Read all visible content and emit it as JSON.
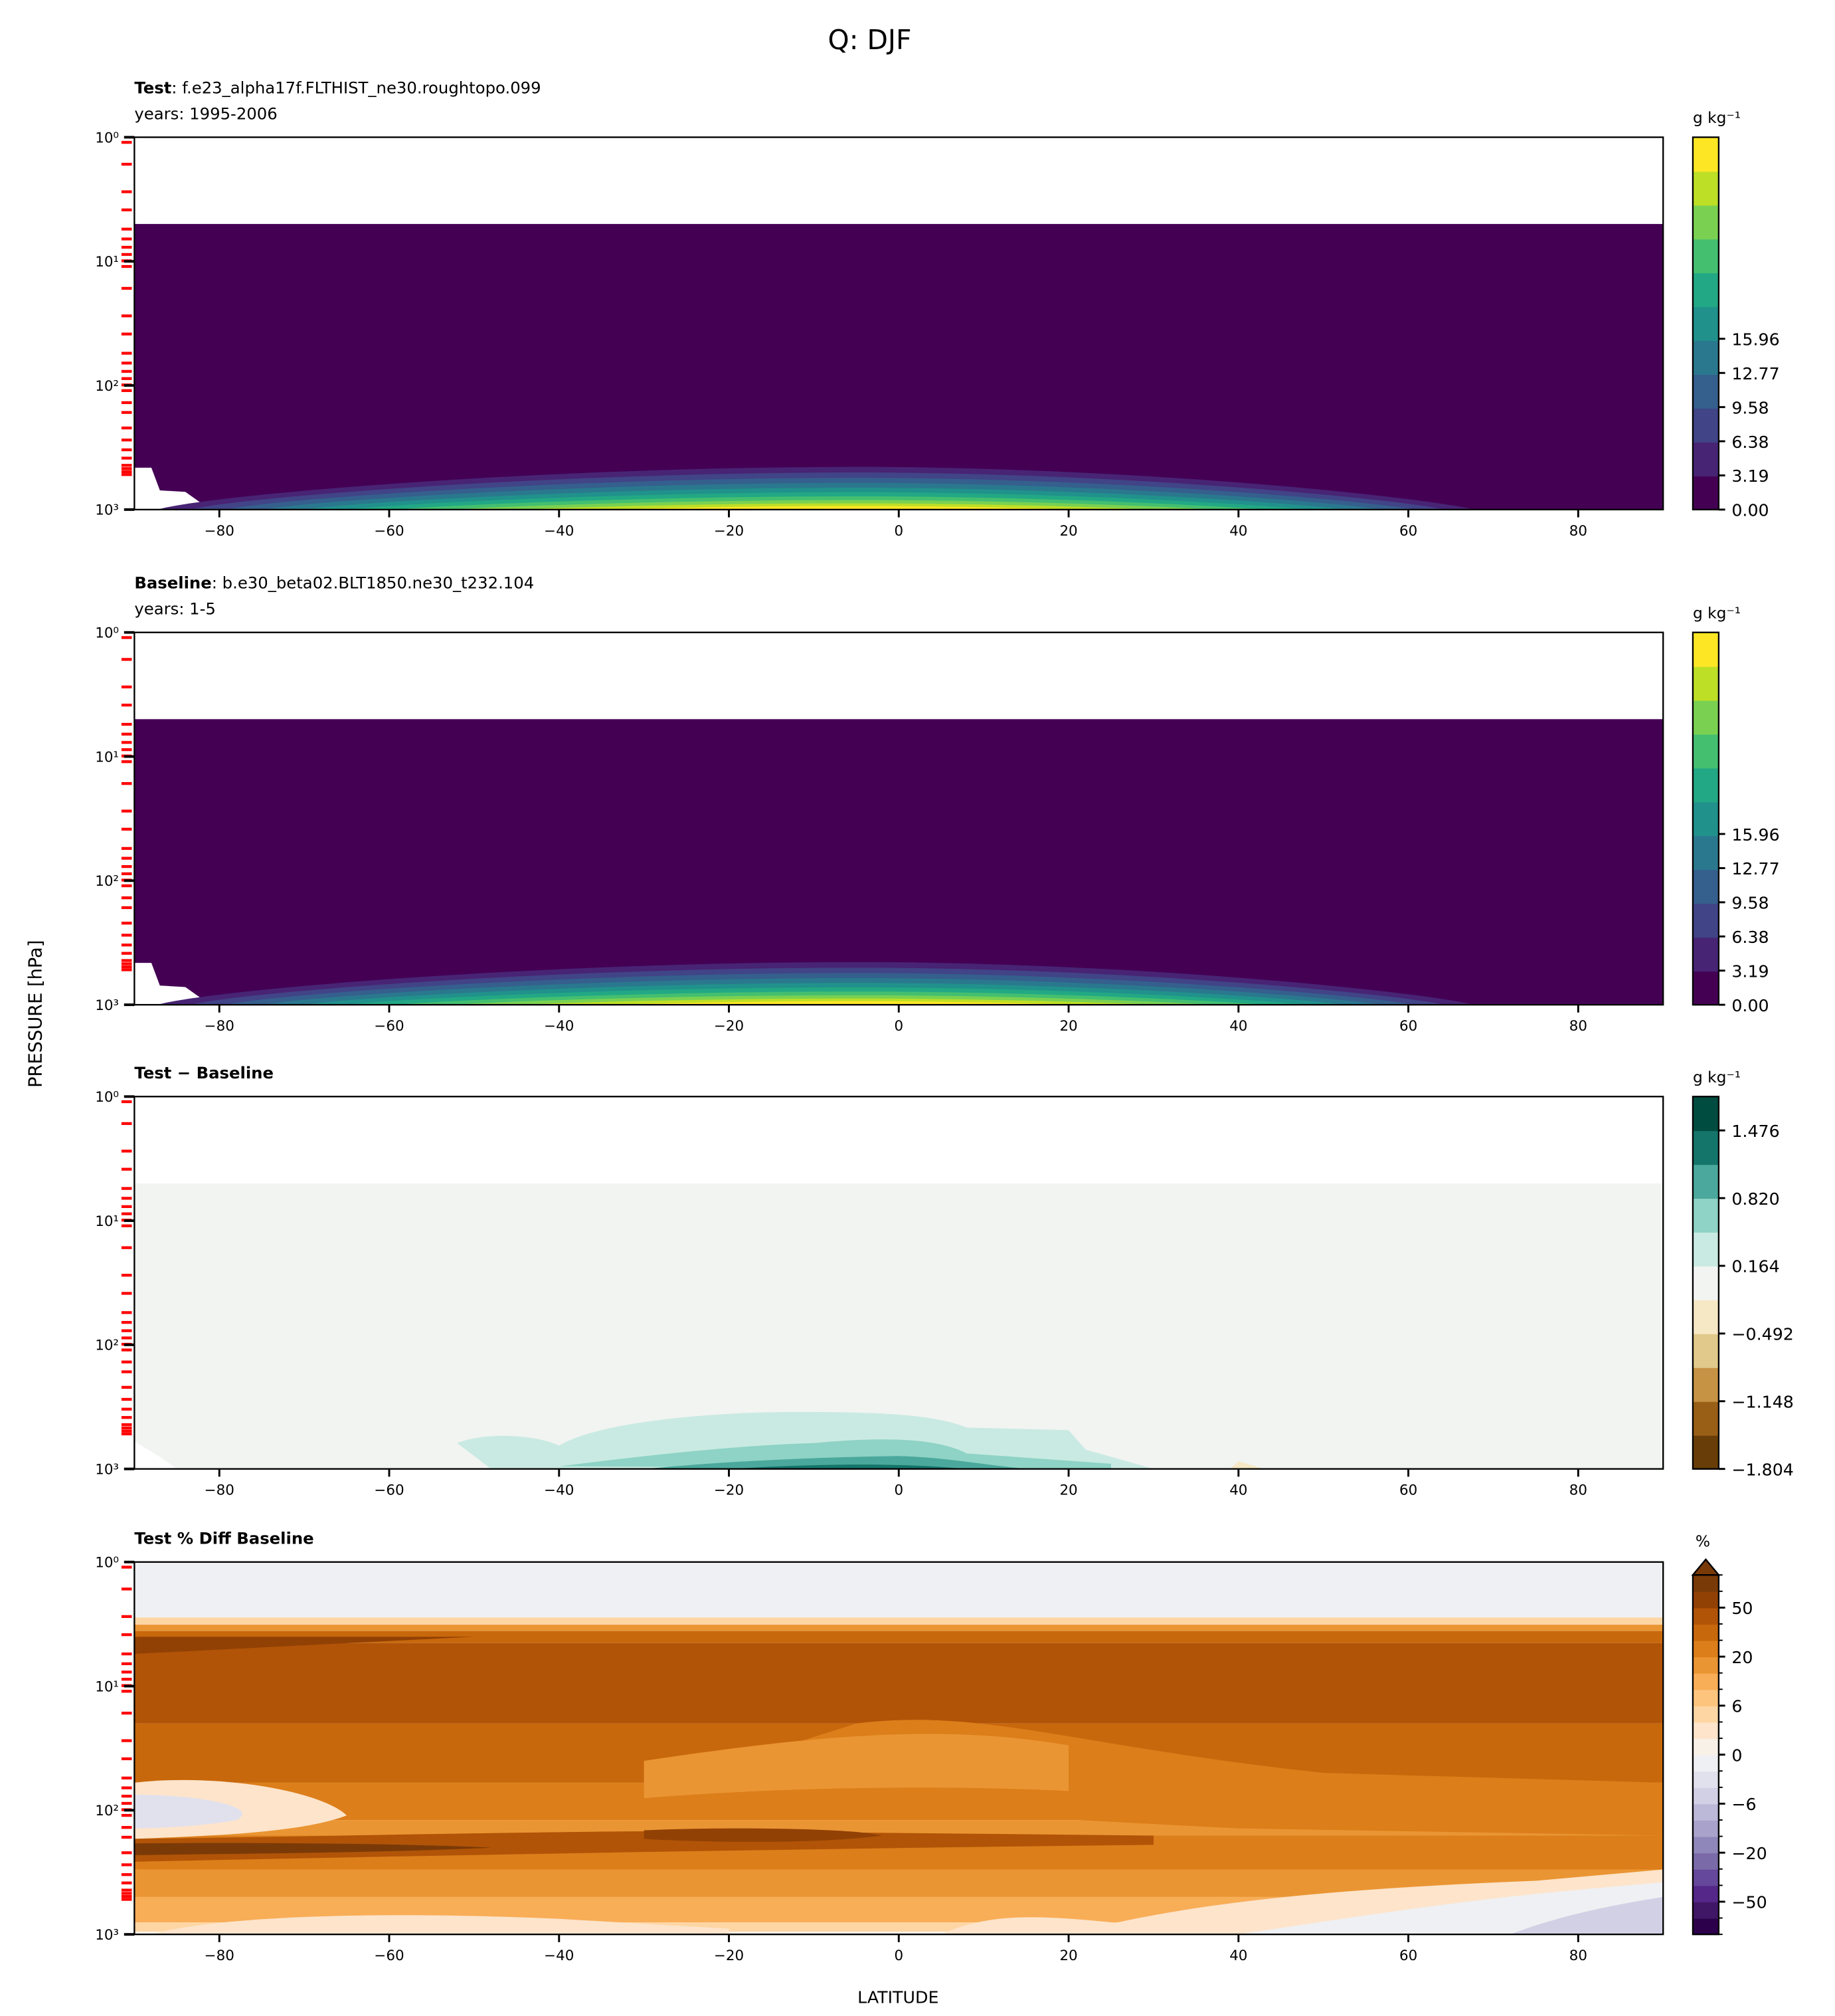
{
  "figure": {
    "title": "Q: DJF",
    "ylabel": "PRESSURE [hPa]",
    "xlabel": "LATITUDE"
  },
  "chart_data": [
    {
      "type": "contour",
      "title_bold": "Test",
      "title_rest": ": f.e23_alpha17f.FLTHIST_ne30.roughtopo.099",
      "subtitle": "years: 1995-2006",
      "units": "g kg⁻¹",
      "xlim": [
        -90,
        90
      ],
      "xticks": [
        -80,
        -60,
        -40,
        -20,
        0,
        20,
        40,
        60,
        80
      ],
      "yscale": "log",
      "ylim": [
        1000,
        1
      ],
      "yticks": [
        "10⁰",
        "10¹",
        "10²",
        "10³"
      ],
      "colormap": "viridis",
      "levels_min": 0.0,
      "levels_step": 1.596,
      "n_levels": 11,
      "cbar_ticks": [
        "0.00",
        "3.19",
        "6.38",
        "9.58",
        "12.77",
        "15.96"
      ],
      "max_near_surface_lat": -5
    },
    {
      "type": "contour",
      "title_bold": "Baseline",
      "title_rest": ": b.e30_beta02.BLT1850.ne30_t232.104",
      "subtitle": "years: 1-5",
      "units": "g kg⁻¹",
      "xlim": [
        -90,
        90
      ],
      "xticks": [
        -80,
        -60,
        -40,
        -20,
        0,
        20,
        40,
        60,
        80
      ],
      "yscale": "log",
      "ylim": [
        1000,
        1
      ],
      "yticks": [
        "10⁰",
        "10¹",
        "10²",
        "10³"
      ],
      "colormap": "viridis",
      "levels_min": 0.0,
      "levels_step": 1.596,
      "n_levels": 11,
      "cbar_ticks": [
        "0.00",
        "3.19",
        "6.38",
        "9.58",
        "12.77",
        "15.96"
      ],
      "max_near_surface_lat": -5
    },
    {
      "type": "contour",
      "title_bold": "Test − Baseline",
      "title_rest": "",
      "subtitle": "",
      "units": "g kg⁻¹",
      "xlim": [
        -90,
        90
      ],
      "xticks": [
        -80,
        -60,
        -40,
        -20,
        0,
        20,
        40,
        60,
        80
      ],
      "yscale": "log",
      "ylim": [
        1000,
        1
      ],
      "yticks": [
        "10⁰",
        "10¹",
        "10²",
        "10³"
      ],
      "colormap": "BrBG",
      "cbar_ticks": [
        "−1.804",
        "−1.148",
        "−0.492",
        "0.164",
        "0.820",
        "1.476"
      ]
    },
    {
      "type": "contour",
      "title_bold": "Test % Diff Baseline",
      "title_rest": "",
      "subtitle": "",
      "units": "%",
      "xlim": [
        -90,
        90
      ],
      "xticks": [
        -80,
        -60,
        -40,
        -20,
        0,
        20,
        40,
        60,
        80
      ],
      "yscale": "log",
      "ylim": [
        1000,
        1
      ],
      "yticks": [
        "10⁰",
        "10¹",
        "10²",
        "10³"
      ],
      "colormap": "PuOr_r",
      "cbar_extend": "max",
      "cbar_ticks": [
        "−50",
        "−20",
        "−6",
        "0",
        "6",
        "20",
        "50"
      ]
    }
  ],
  "colors": {
    "viridis": [
      "#440154",
      "#482475",
      "#414487",
      "#355f8d",
      "#2a788e",
      "#21918c",
      "#22a884",
      "#44bf70",
      "#7ad151",
      "#bddf26",
      "#fde725"
    ],
    "brbg": [
      "#693d07",
      "#995f17",
      "#c69244",
      "#e0c98a",
      "#f6e8c4",
      "#f2f4f2",
      "#c9eae2",
      "#8ed3c5",
      "#4ba89c",
      "#14756b",
      "#004c40"
    ],
    "puor_r": [
      "#2d004b",
      "#3f1766",
      "#542788",
      "#65479b",
      "#7a6aa8",
      "#8f87b9",
      "#a9a2cb",
      "#bcb8d8",
      "#d1d0e5",
      "#e1e1ee",
      "#eff0f3",
      "#f8f1e8",
      "#fde4cb",
      "#fed6a4",
      "#fdc47e",
      "#f8ad57",
      "#ea9533",
      "#dc7e1a",
      "#c8680c",
      "#b15407",
      "#924105",
      "#7a3a08"
    ]
  }
}
